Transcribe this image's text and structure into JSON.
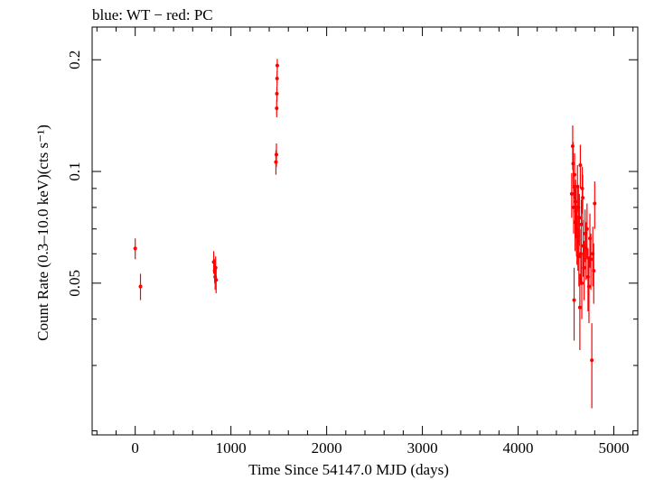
{
  "chart_data": {
    "type": "scatter",
    "title": "blue: WT − red: PC",
    "xlabel": "Time Since 54147.0 MJD (days)",
    "ylabel": "Count Rate (0.3–10.0 keV)(cts s⁻¹)",
    "xlim": [
      -450,
      5250
    ],
    "ylim": [
      0.0195,
      0.245
    ],
    "yscale": "log",
    "x_ticks": [
      "0",
      "1000",
      "2000",
      "3000",
      "4000",
      "5000"
    ],
    "x_tick_values": [
      0,
      1000,
      2000,
      3000,
      4000,
      5000
    ],
    "y_ticks": [
      "0.05",
      "0.1",
      "0.2"
    ],
    "y_tick_values": [
      0.05,
      0.1,
      0.2
    ],
    "grid": false,
    "series": [
      {
        "color": "#ff0000",
        "x": [
          0,
          55,
          820,
          830,
          835,
          840,
          845,
          1470,
          1475,
          1478,
          1480,
          1482,
          1484,
          4560,
          4570,
          4575,
          4580,
          4585,
          4590,
          4595,
          4600,
          4605,
          4610,
          4615,
          4620,
          4625,
          4630,
          4635,
          4640,
          4645,
          4650,
          4655,
          4660,
          4665,
          4670,
          4675,
          4680,
          4690,
          4700,
          4710,
          4720,
          4730,
          4740,
          4750,
          4760,
          4770,
          4780,
          4790,
          4800
        ],
        "y": [
          0.062,
          0.049,
          0.057,
          0.054,
          0.052,
          0.055,
          0.051,
          0.106,
          0.111,
          0.148,
          0.162,
          0.178,
          0.193,
          0.087,
          0.117,
          0.105,
          0.08,
          0.045,
          0.098,
          0.073,
          0.083,
          0.078,
          0.07,
          0.067,
          0.091,
          0.065,
          0.08,
          0.059,
          0.075,
          0.043,
          0.104,
          0.06,
          0.072,
          0.05,
          0.09,
          0.085,
          0.063,
          0.055,
          0.068,
          0.062,
          0.07,
          0.052,
          0.049,
          0.066,
          0.058,
          0.031,
          0.06,
          0.054,
          0.082
        ],
        "yerr": [
          0.004,
          0.004,
          0.004,
          0.004,
          0.004,
          0.004,
          0.004,
          0.008,
          0.008,
          0.008,
          0.008,
          0.008,
          0.008,
          0.012,
          0.016,
          0.015,
          0.012,
          0.01,
          0.014,
          0.012,
          0.012,
          0.012,
          0.011,
          0.011,
          0.013,
          0.011,
          0.012,
          0.01,
          0.012,
          0.01,
          0.014,
          0.01,
          0.012,
          0.01,
          0.013,
          0.013,
          0.011,
          0.01,
          0.011,
          0.011,
          0.012,
          0.01,
          0.01,
          0.011,
          0.01,
          0.008,
          0.011,
          0.01,
          0.012
        ]
      }
    ]
  }
}
